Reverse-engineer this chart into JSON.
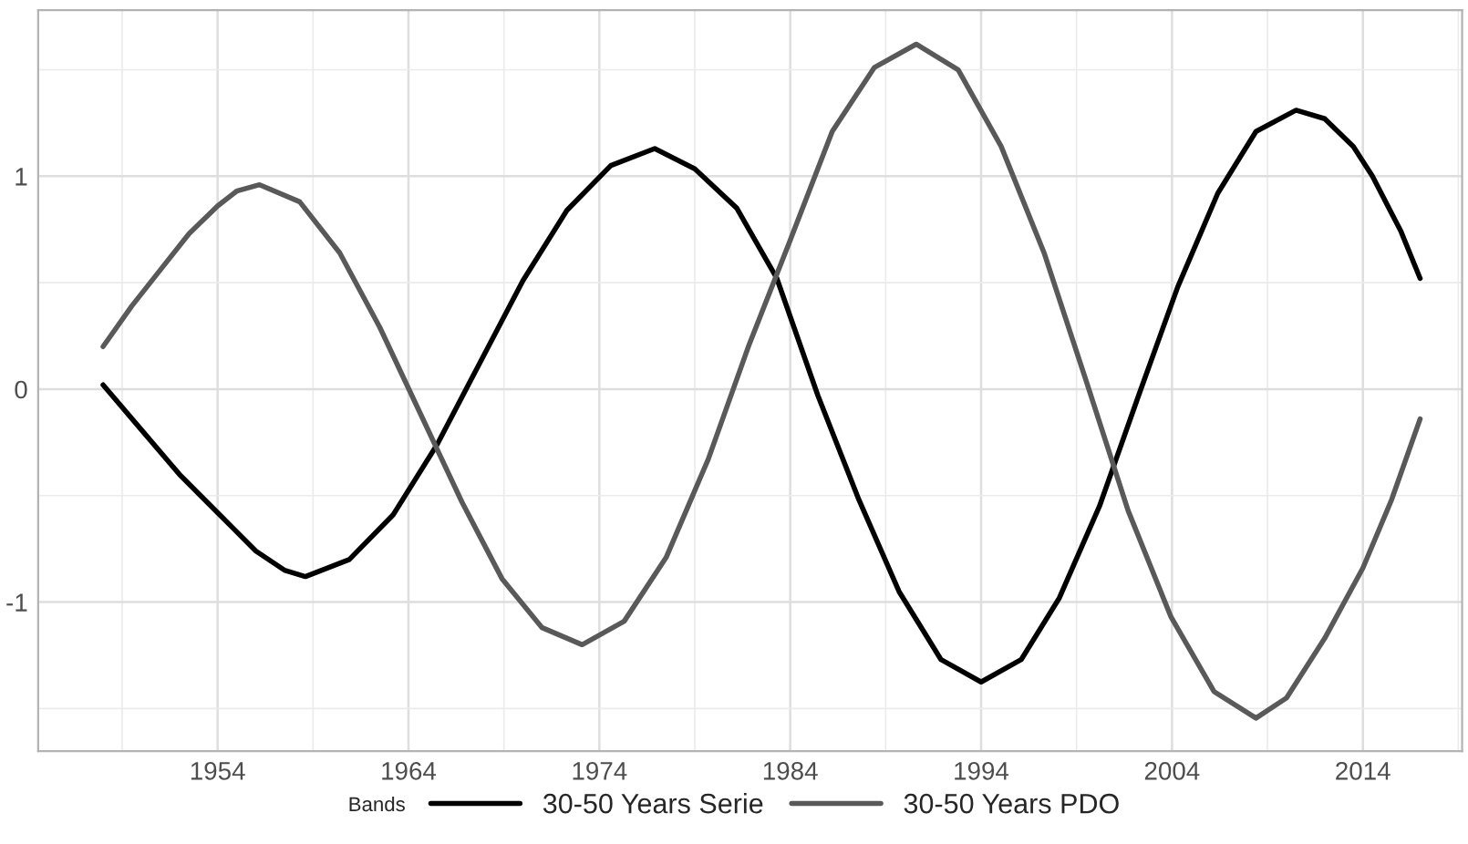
{
  "chart_data": {
    "type": "line",
    "legend_title": "Bands",
    "legend": "bottom",
    "grid": true,
    "line_style": "solid",
    "xlim": [
      1944.6,
      2019.2
    ],
    "xticks": [
      1954,
      1964,
      1974,
      1984,
      1994,
      2004,
      2014
    ],
    "ylim": [
      -1.7,
      1.78
    ],
    "yticks": [
      {
        "value": -1,
        "label": "-1"
      },
      0,
      1
    ],
    "series": [
      {
        "name": "30-50 Years Serie",
        "color": "#000000",
        "x": [
          1948,
          1950,
          1952,
          1954,
          1956,
          1957.5,
          1958.6,
          1960.9,
          1963.2,
          1965.5,
          1967.75,
          1970.0,
          1972.3,
          1974.6,
          1976.9,
          1979.0,
          1981.2,
          1983.3,
          1985.45,
          1987.6,
          1989.7,
          1991.9,
          1994,
          1996.1,
          1998.1,
          2000.2,
          2002.25,
          2004.3,
          2006.4,
          2008.4,
          2010.5,
          2012,
          2013.5,
          2014.5,
          2016,
          2017
        ],
        "values": [
          0.02,
          -0.19,
          -0.4,
          -0.58,
          -0.76,
          -0.85,
          -0.88,
          -0.8,
          -0.59,
          -0.26,
          0.125,
          0.51,
          0.84,
          1.05,
          1.13,
          1.035,
          0.85,
          0.52,
          -0.03,
          -0.52,
          -0.95,
          -1.27,
          -1.375,
          -1.27,
          -0.98,
          -0.55,
          -0.03,
          0.48,
          0.92,
          1.21,
          1.31,
          1.27,
          1.14,
          1.0,
          0.74,
          0.52
        ]
      },
      {
        "name": "30-50 Years PDO",
        "color": "#595959",
        "x": [
          1948,
          1949.5,
          1951,
          1952.5,
          1954,
          1955,
          1956.2,
          1958.3,
          1960.4,
          1962.5,
          1964.65,
          1966.8,
          1968.9,
          1971.0,
          1973.1,
          1975.3,
          1977.5,
          1979.7,
          1981.85,
          1984.0,
          1986.2,
          1988.4,
          1990.6,
          1992.8,
          1995.05,
          1997.3,
          1999.5,
          2001.7,
          2003.95,
          2006.2,
          2008.4,
          2010,
          2012,
          2014,
          2015.5,
          2017
        ],
        "values": [
          0.2,
          0.39,
          0.56,
          0.73,
          0.86,
          0.93,
          0.96,
          0.88,
          0.64,
          0.29,
          -0.12,
          -0.53,
          -0.89,
          -1.12,
          -1.2,
          -1.09,
          -0.79,
          -0.33,
          0.21,
          0.7,
          1.21,
          1.51,
          1.62,
          1.5,
          1.14,
          0.64,
          0.04,
          -0.57,
          -1.07,
          -1.42,
          -1.545,
          -1.45,
          -1.17,
          -0.84,
          -0.52,
          -0.14
        ]
      }
    ]
  }
}
